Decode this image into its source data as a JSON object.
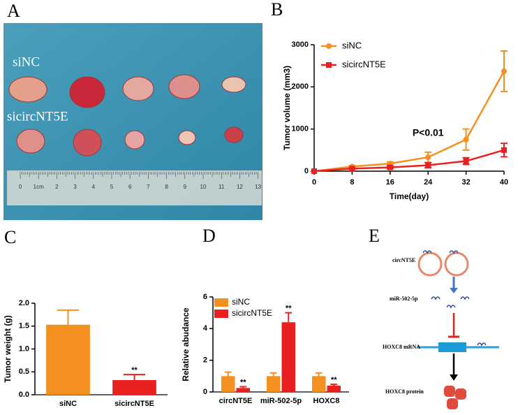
{
  "panel_letters": [
    "A",
    "B",
    "C",
    "D",
    "E"
  ],
  "photo": {
    "labels": [
      "siNC",
      "sicircNT5E"
    ],
    "ruler_labels": [
      "0",
      "1cm",
      "2",
      "3",
      "4",
      "5",
      "6",
      "7",
      "8",
      "9",
      "10",
      "11",
      "12",
      "13"
    ]
  },
  "diagram": {
    "labels": [
      "circNT5E",
      "miR-502-5p",
      "HOXC8 mRNA",
      "HOXC8 protein"
    ]
  },
  "chart_data": [
    {
      "type": "line",
      "x": [
        0,
        8,
        16,
        24,
        32,
        40
      ],
      "xlim": [
        0,
        40
      ],
      "xticks": [
        0,
        8,
        16,
        24,
        32,
        40
      ],
      "ylim": [
        0,
        3000
      ],
      "yticks": [
        0,
        1000,
        2000,
        3000
      ],
      "xlabel": "Time(day)",
      "ylabel": "Tumor volume (mm3)",
      "annotation": "P<0.01",
      "legend": "upper left",
      "series": [
        {
          "name": "siNC",
          "color": "#f39020",
          "marker": "circle",
          "values": [
            0,
            110,
            180,
            330,
            750,
            2370
          ],
          "errors": [
            0,
            20,
            40,
            120,
            250,
            480
          ]
        },
        {
          "name": "sicircNT5E",
          "color": "#e8201f",
          "marker": "square",
          "values": [
            0,
            60,
            90,
            140,
            240,
            500
          ],
          "errors": [
            0,
            15,
            30,
            60,
            80,
            160
          ]
        }
      ]
    },
    {
      "type": "bar",
      "categories": [
        "siNC",
        "sicircNT5E"
      ],
      "values": [
        1.53,
        0.32
      ],
      "errors": [
        0.32,
        0.12
      ],
      "colors": [
        "#f39020",
        "#e8201f"
      ],
      "ylim": [
        0,
        2
      ],
      "yticks": [
        {
          "value": 0,
          "label": "0.0"
        },
        {
          "value": 0.5,
          "label": "0.5"
        },
        {
          "value": 1,
          "label": "1.0"
        },
        {
          "value": 1.5,
          "label": "1.5"
        },
        {
          "value": 2,
          "label": "2.0"
        }
      ],
      "ylabel": "Tumor weight (g)",
      "annotations": [
        {
          "at": "sicircNT5E",
          "text": "**"
        }
      ]
    },
    {
      "type": "bar",
      "categories": [
        "circNT5E",
        "miR-502-5p",
        "HOXC8"
      ],
      "ylim": [
        0,
        6
      ],
      "yticks": [
        0,
        2,
        4,
        6
      ],
      "ylabel": "Relative abudance",
      "legend": "upper left",
      "series": [
        {
          "name": "siNC",
          "color": "#f39020",
          "values": [
            1.0,
            1.0,
            1.0
          ],
          "errors": [
            0.25,
            0.2,
            0.2
          ]
        },
        {
          "name": "sicircNT5E",
          "color": "#e8201f",
          "values": [
            0.25,
            4.4,
            0.4
          ],
          "errors": [
            0.08,
            0.6,
            0.08
          ],
          "annotations": [
            "**",
            "**",
            "**"
          ]
        }
      ]
    }
  ]
}
